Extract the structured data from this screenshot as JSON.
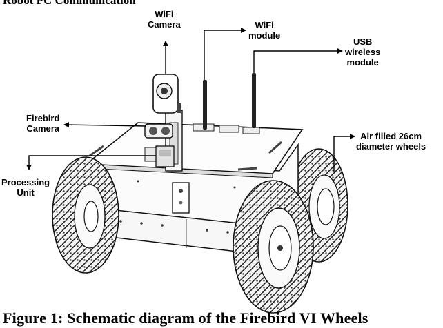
{
  "header_fragment": "Robot PC Communication",
  "labels": {
    "wifi_camera": [
      "WiFi",
      "Camera"
    ],
    "wifi_module": [
      "WiFi",
      "module"
    ],
    "usb_wireless_module": [
      "USB",
      "wireless",
      "module"
    ],
    "firebird_camera": [
      "Firebird",
      "Camera"
    ],
    "processing_unit": [
      "Processing",
      "Unit"
    ],
    "wheels": [
      "Air filled 26cm",
      "diameter wheels"
    ]
  },
  "caption": "Figure 1: Schematic diagram of the Firebird VI Wheels"
}
